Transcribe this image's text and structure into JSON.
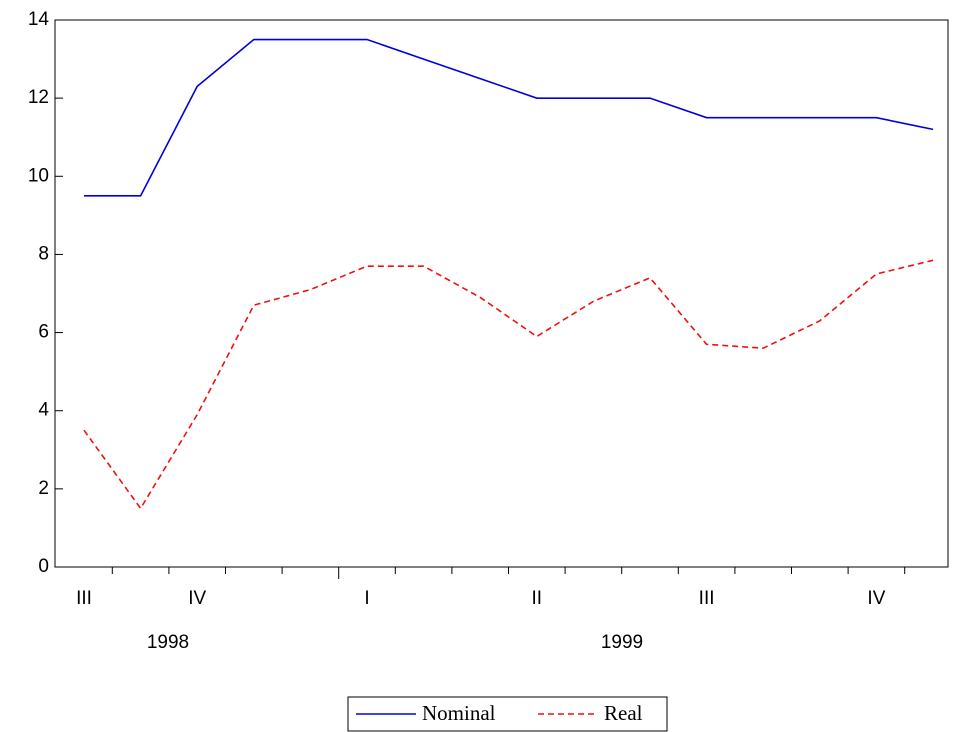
{
  "chart_data": {
    "type": "line",
    "categories": [
      "III",
      null,
      "IV",
      null,
      null,
      "I",
      null,
      null,
      "II",
      null,
      null,
      "III",
      null,
      null,
      "IV",
      null
    ],
    "years": [
      "1998",
      "1999"
    ],
    "series": [
      {
        "name": "Nominal",
        "color": "#0000dd",
        "dash": "solid",
        "values": [
          9.5,
          9.5,
          12.3,
          13.5,
          13.5,
          13.5,
          13.0,
          12.5,
          12.0,
          12.0,
          12.0,
          11.5,
          11.5,
          11.5,
          11.5,
          11.2
        ]
      },
      {
        "name": "Real",
        "color": "#ee1111",
        "dash": "dashed",
        "values": [
          3.5,
          1.5,
          3.9,
          6.7,
          7.1,
          7.7,
          7.7,
          6.9,
          5.9,
          6.8,
          7.4,
          5.7,
          5.6,
          6.3,
          7.5,
          7.85
        ]
      }
    ],
    "ylim": [
      0,
      14
    ],
    "yticks": [
      0,
      2,
      4,
      6,
      8,
      10,
      12,
      14
    ]
  }
}
